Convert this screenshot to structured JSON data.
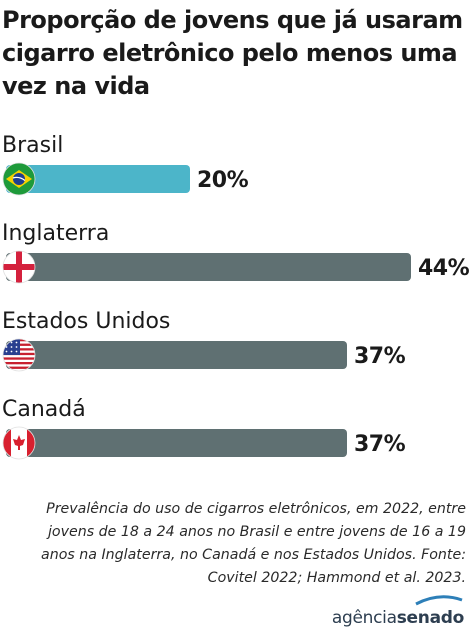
{
  "title": "Proporção de jovens que já usaram cigarro eletrônico pelo menos uma vez na vida",
  "chart_data": {
    "type": "bar",
    "orientation": "horizontal",
    "categories": [
      "Brasil",
      "Inglaterra",
      "Estados Unidos",
      "Canadá"
    ],
    "values": [
      20,
      44,
      37,
      37
    ],
    "value_labels": [
      "20%",
      "44%",
      "37%",
      "37%"
    ],
    "unit": "%",
    "xlim": [
      0,
      44
    ],
    "colors": [
      "#4cb5c9",
      "#5f7072",
      "#5f7072",
      "#5f7072"
    ],
    "flags": [
      "brazil-flag-icon",
      "england-flag-icon",
      "usa-flag-icon",
      "canada-flag-icon"
    ]
  },
  "footnote": "Prevalência do uso de cigarros eletrônicos, em 2022, entre jovens de 18 a 24 anos no Brasil e entre jovens de 16 a 19 anos na Inglaterra, no Canadá e nos Estados Unidos. Fonte: Covitel 2022; Hammond et al. 2023.",
  "logo": {
    "part1": "agência",
    "part2": "senado"
  }
}
